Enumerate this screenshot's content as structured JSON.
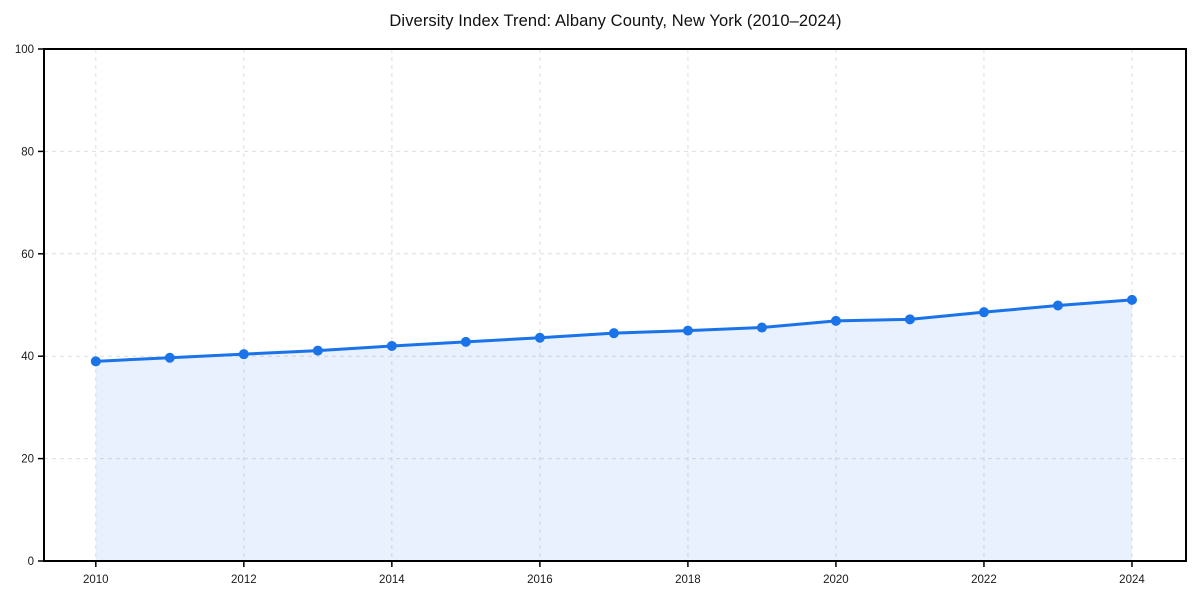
{
  "chart_data": {
    "type": "area",
    "title": "Diversity Index Trend: Albany County, New York (2010–2024)",
    "x": [
      2010,
      2011,
      2012,
      2013,
      2014,
      2015,
      2016,
      2017,
      2018,
      2019,
      2020,
      2021,
      2022,
      2023,
      2024
    ],
    "series": [
      {
        "name": "Diversity Index",
        "values": [
          39.0,
          39.7,
          40.4,
          41.1,
          42.0,
          42.8,
          43.6,
          44.5,
          45.0,
          45.6,
          46.9,
          47.2,
          48.6,
          49.9,
          51.0
        ]
      }
    ],
    "xlabel": "",
    "ylabel": "",
    "xlim": [
      2009.3,
      2024.73
    ],
    "ylim": [
      0,
      100
    ],
    "xticks": [
      2010,
      2012,
      2014,
      2016,
      2018,
      2020,
      2022,
      2024
    ],
    "yticks": [
      0,
      20,
      40,
      60,
      80,
      100
    ],
    "grid": true,
    "grid_style": "dashed",
    "legend_position": "none",
    "colors": {
      "line": "#1a73e8",
      "marker": "#1a73e8",
      "fill": "#1a73e8",
      "fill_opacity": 0.1,
      "grid": "#dedede",
      "axis": "#000000",
      "tick_text": "#1a1a1a",
      "title_text": "#111111",
      "background": "#ffffff"
    },
    "marker_radius": 5,
    "line_width": 3
  }
}
